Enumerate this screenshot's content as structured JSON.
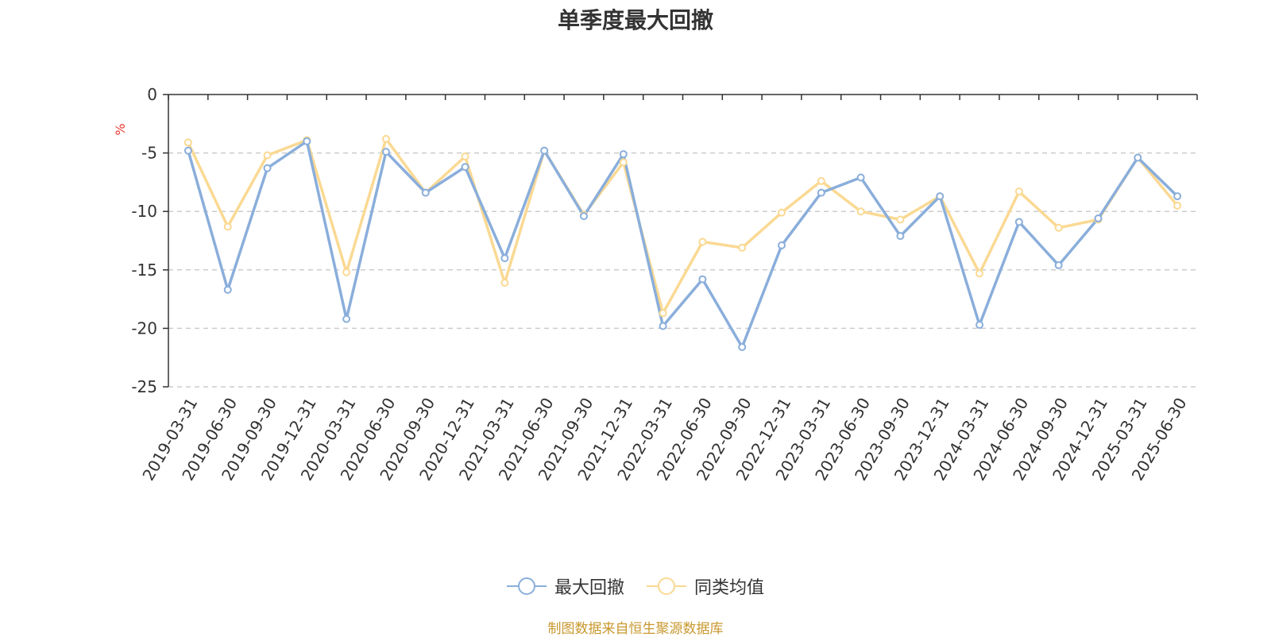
{
  "chart_data": {
    "type": "line",
    "title": "单季度最大回撤",
    "ylabel": "%",
    "ylim": [
      -25,
      0
    ],
    "yticks": [
      0,
      -5,
      -10,
      -15,
      -20,
      -25
    ],
    "grid": "horizontal dashed",
    "legend_position": "bottom-center",
    "categories": [
      "2019-03-31",
      "2019-06-30",
      "2019-09-30",
      "2019-12-31",
      "2020-03-31",
      "2020-06-30",
      "2020-09-30",
      "2020-12-31",
      "2021-03-31",
      "2021-06-30",
      "2021-09-30",
      "2021-12-31",
      "2022-03-31",
      "2022-06-30",
      "2022-09-30",
      "2022-12-31",
      "2023-03-31",
      "2023-06-30",
      "2023-09-30",
      "2023-12-31",
      "2024-03-31",
      "2024-06-30",
      "2024-09-30",
      "2024-12-31",
      "2025-03-31",
      "2025-06-30"
    ],
    "series": [
      {
        "name": "最大回撤",
        "color": "#8aaedb",
        "values": [
          -4.8,
          -16.7,
          -6.3,
          -4.0,
          -19.2,
          -4.9,
          -8.4,
          -6.2,
          -14.0,
          -4.8,
          -10.4,
          -5.1,
          -19.8,
          -15.8,
          -21.6,
          -12.9,
          -8.4,
          -7.1,
          -12.1,
          -8.7,
          -19.7,
          -10.9,
          -14.6,
          -10.6,
          -5.4,
          -8.7
        ]
      },
      {
        "name": "同类均值",
        "color": "#fad993",
        "values": [
          -4.1,
          -11.3,
          -5.2,
          -3.9,
          -15.2,
          -3.8,
          -8.4,
          -5.3,
          -16.1,
          -4.8,
          -10.3,
          -5.8,
          -18.7,
          -12.6,
          -13.1,
          -10.1,
          -7.4,
          -10.0,
          -10.7,
          -8.7,
          -15.3,
          -8.3,
          -11.4,
          -10.7,
          -5.4,
          -9.5
        ]
      }
    ]
  },
  "footer": {
    "source": "制图数据来自恒生聚源数据库"
  }
}
